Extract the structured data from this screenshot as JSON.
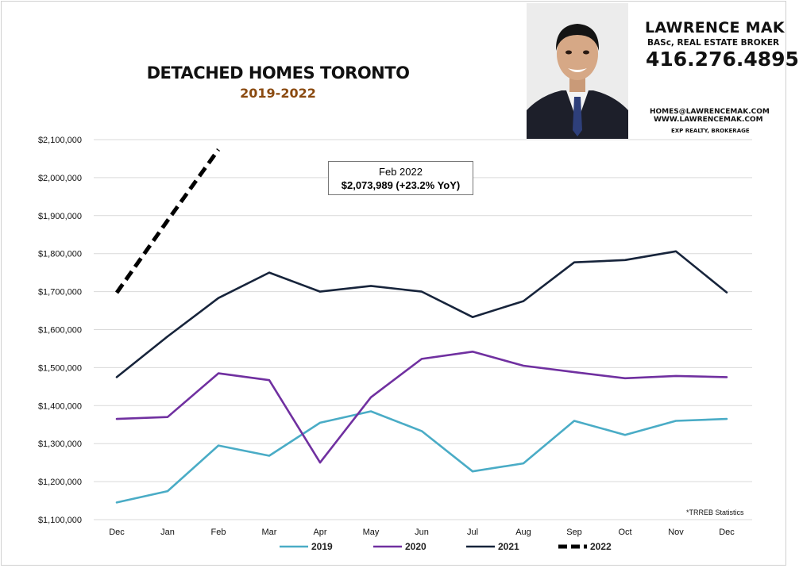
{
  "header": {
    "title": "DETACHED HOMES TORONTO",
    "subtitle": "2019-2022"
  },
  "agent": {
    "name": "LAWRENCE MAK",
    "role": "BASc, REAL ESTATE BROKER",
    "phone": "416.276.4895",
    "email": "HOMES@LAWRENCEMAK.COM",
    "website": "WWW.LAWRENCEMAK.COM",
    "brokerage": "EXP REALTY, BROKERAGE"
  },
  "annotation": {
    "label": "Feb 2022",
    "value": "$2,073,989  (+23.2%  YoY)"
  },
  "source_note": "*TRREB Statistics",
  "chart_data": {
    "type": "line",
    "categories": [
      "Dec",
      "Jan",
      "Feb",
      "Mar",
      "Apr",
      "May",
      "Jun",
      "Jul",
      "Aug",
      "Sep",
      "Oct",
      "Nov",
      "Dec"
    ],
    "ylim": [
      1100000,
      2100000
    ],
    "y_ticks": [
      {
        "value": 1100000,
        "label": "$1,100,000"
      },
      {
        "value": 1200000,
        "label": "$1,200,000"
      },
      {
        "value": 1300000,
        "label": "$1,300,000"
      },
      {
        "value": 1400000,
        "label": "$1,400,000"
      },
      {
        "value": 1500000,
        "label": "$1,500,000"
      },
      {
        "value": 1600000,
        "label": "$1,600,000"
      },
      {
        "value": 1700000,
        "label": "$1,700,000"
      },
      {
        "value": 1800000,
        "label": "$1,800,000"
      },
      {
        "value": 1900000,
        "label": "$1,900,000"
      },
      {
        "value": 2000000,
        "label": "$2,000,000"
      },
      {
        "value": 2100000,
        "label": "$2,100,000"
      }
    ],
    "grid": true,
    "legend_position": "bottom",
    "series": [
      {
        "name": "2019",
        "color": "#4aacc6",
        "dashed": false,
        "values": [
          1145000,
          1175000,
          1295000,
          1268000,
          1355000,
          1385000,
          1333000,
          1227000,
          1248000,
          1360000,
          1323000,
          1360000,
          1365000
        ]
      },
      {
        "name": "2020",
        "color": "#7030a0",
        "dashed": false,
        "values": [
          1365000,
          1370000,
          1485000,
          1467000,
          1250000,
          1422000,
          1523000,
          1542000,
          1505000,
          1488000,
          1472000,
          1478000,
          1475000
        ]
      },
      {
        "name": "2021",
        "color": "#17243b",
        "dashed": false,
        "values": [
          1475000,
          1582000,
          1683000,
          1750000,
          1700000,
          1715000,
          1700000,
          1633000,
          1675000,
          1777000,
          1783000,
          1806000,
          1698000
        ]
      },
      {
        "name": "2022",
        "color": "#000000",
        "dashed": true,
        "values": [
          1697000,
          1887000,
          2073989,
          null,
          null,
          null,
          null,
          null,
          null,
          null,
          null,
          null,
          null
        ]
      }
    ]
  }
}
